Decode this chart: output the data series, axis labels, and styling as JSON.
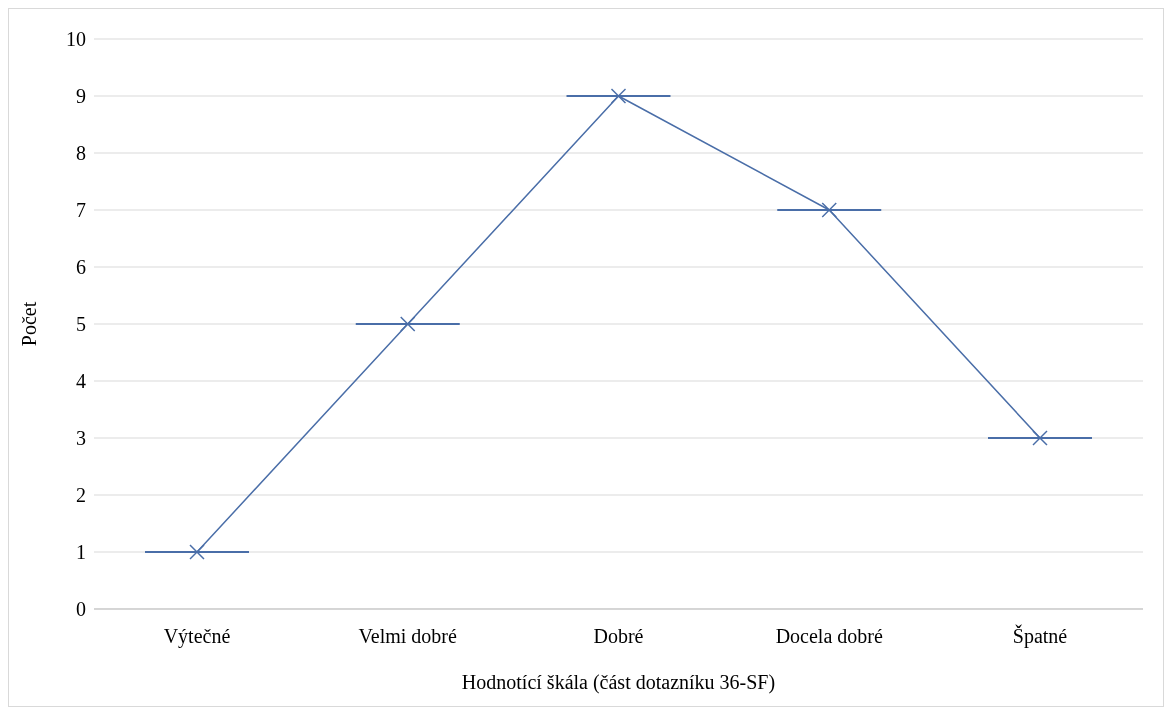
{
  "chart_data": {
    "type": "line",
    "xlabel": "Hodnotící škála (část dotazníku 36-SF)",
    "ylabel": "Počet",
    "categories": [
      "Výtečné",
      "Velmi dobré",
      "Dobré",
      "Docela dobré",
      "Špatné"
    ],
    "series": [
      {
        "color": "#4a6ea8",
        "values": [
          1,
          5,
          9,
          7,
          3
        ]
      }
    ],
    "ylim": [
      0,
      10
    ],
    "yticks": [
      0,
      1,
      2,
      3,
      4,
      5,
      6,
      7,
      8,
      9,
      10
    ],
    "grid": "y",
    "marker": "cross",
    "line_style": "solid"
  }
}
